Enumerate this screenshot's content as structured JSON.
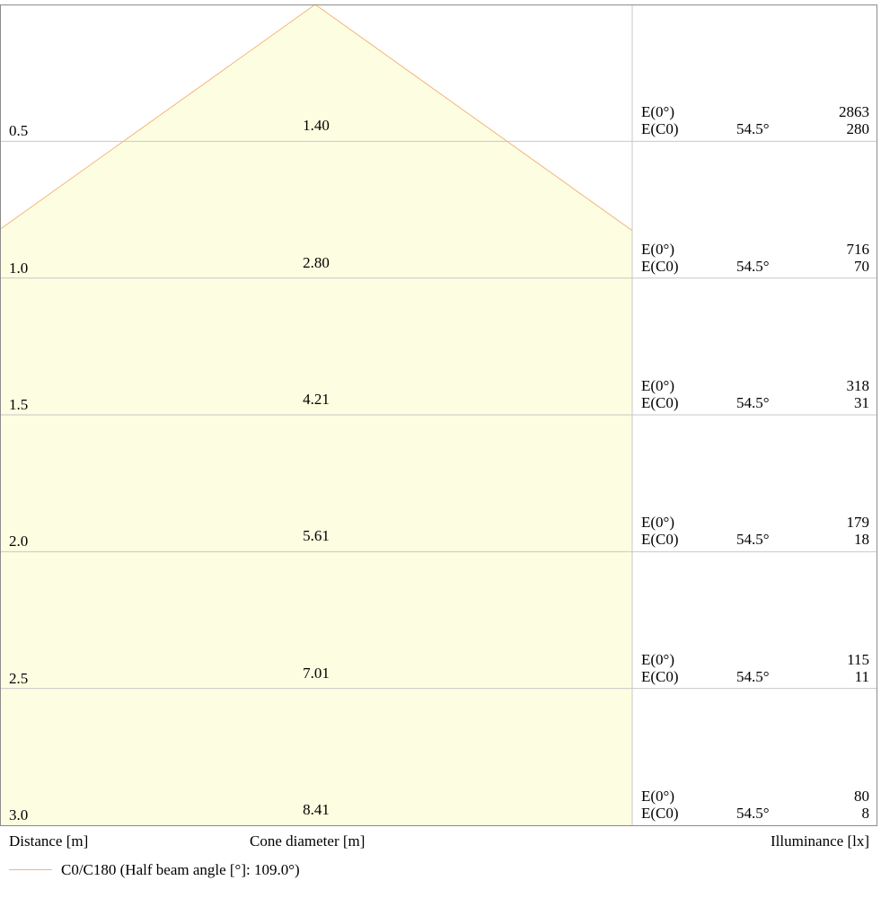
{
  "chart_data": {
    "type": "area",
    "title": "",
    "half_beam_angle_deg": 109.0,
    "distances": [
      "0.5",
      "1.0",
      "1.5",
      "2.0",
      "2.5",
      "3.0"
    ],
    "cone_diameters": [
      "1.40",
      "2.80",
      "4.21",
      "5.61",
      "7.01",
      "8.41"
    ],
    "e0_values": [
      "2863",
      "716",
      "318",
      "179",
      "115",
      "80"
    ],
    "ec0_values": [
      "280",
      "70",
      "31",
      "18",
      "11",
      "8"
    ],
    "ec0_angle": "54.5°",
    "e0_label": "E(0°)",
    "ec0_label": "E(C0)",
    "xlabel_distance": "Distance [m]",
    "xlabel_cone": "Cone diameter [m]",
    "xlabel_illuminance": "Illuminance [lx]",
    "legend": "C0/C180 (Half beam angle [°]: 109.0°)",
    "colors": {
      "cone_fill": "#fdfde1",
      "cone_line": "#f4b67a",
      "grid": "#c8c8c8",
      "frame": "#8c8c8c"
    }
  }
}
